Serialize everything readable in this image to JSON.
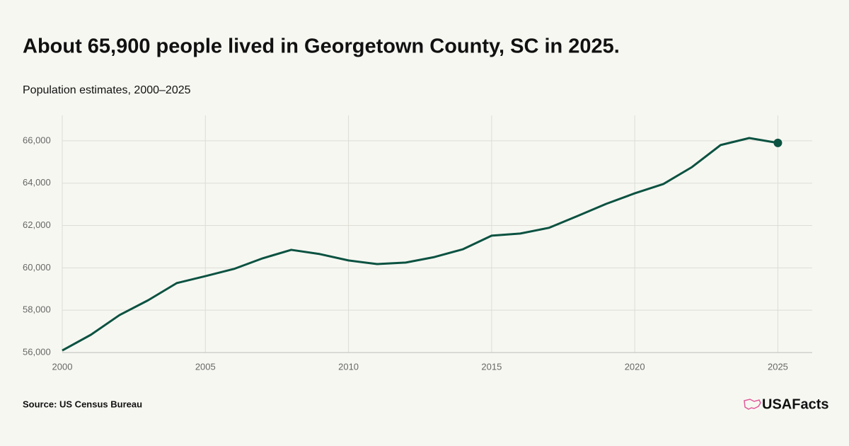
{
  "chart_data": {
    "type": "line",
    "title": "About 65,900 people lived in Georgetown County, SC in 2025.",
    "subtitle": "Population estimates, 2000–2025",
    "source": "Source: US Census Bureau",
    "brand": "USAFacts",
    "x": [
      2000,
      2001,
      2002,
      2003,
      2004,
      2005,
      2006,
      2007,
      2008,
      2009,
      2010,
      2011,
      2012,
      2013,
      2014,
      2015,
      2016,
      2017,
      2018,
      2019,
      2020,
      2021,
      2022,
      2023,
      2024,
      2025
    ],
    "values": [
      56100,
      56840,
      57770,
      58470,
      59280,
      59610,
      59950,
      60450,
      60850,
      60650,
      60350,
      60180,
      60250,
      60510,
      60880,
      61520,
      61620,
      61890,
      62450,
      63020,
      63520,
      63960,
      64760,
      65800,
      66130,
      65900
    ],
    "color": "#0b5241",
    "xlim": [
      2000,
      2026.2
    ],
    "xticks": [
      2000,
      2005,
      2010,
      2015,
      2020,
      2025
    ],
    "ylim": [
      56000,
      67200
    ],
    "yticks": [
      {
        "value": 56000,
        "label": "56,000"
      },
      {
        "value": 58000,
        "label": "58,000"
      },
      {
        "value": 60000,
        "label": "60,000"
      },
      {
        "value": 62000,
        "label": "62,000"
      },
      {
        "value": 64000,
        "label": "64,000"
      },
      {
        "value": 66000,
        "label": "66,000"
      }
    ],
    "grid": true
  }
}
